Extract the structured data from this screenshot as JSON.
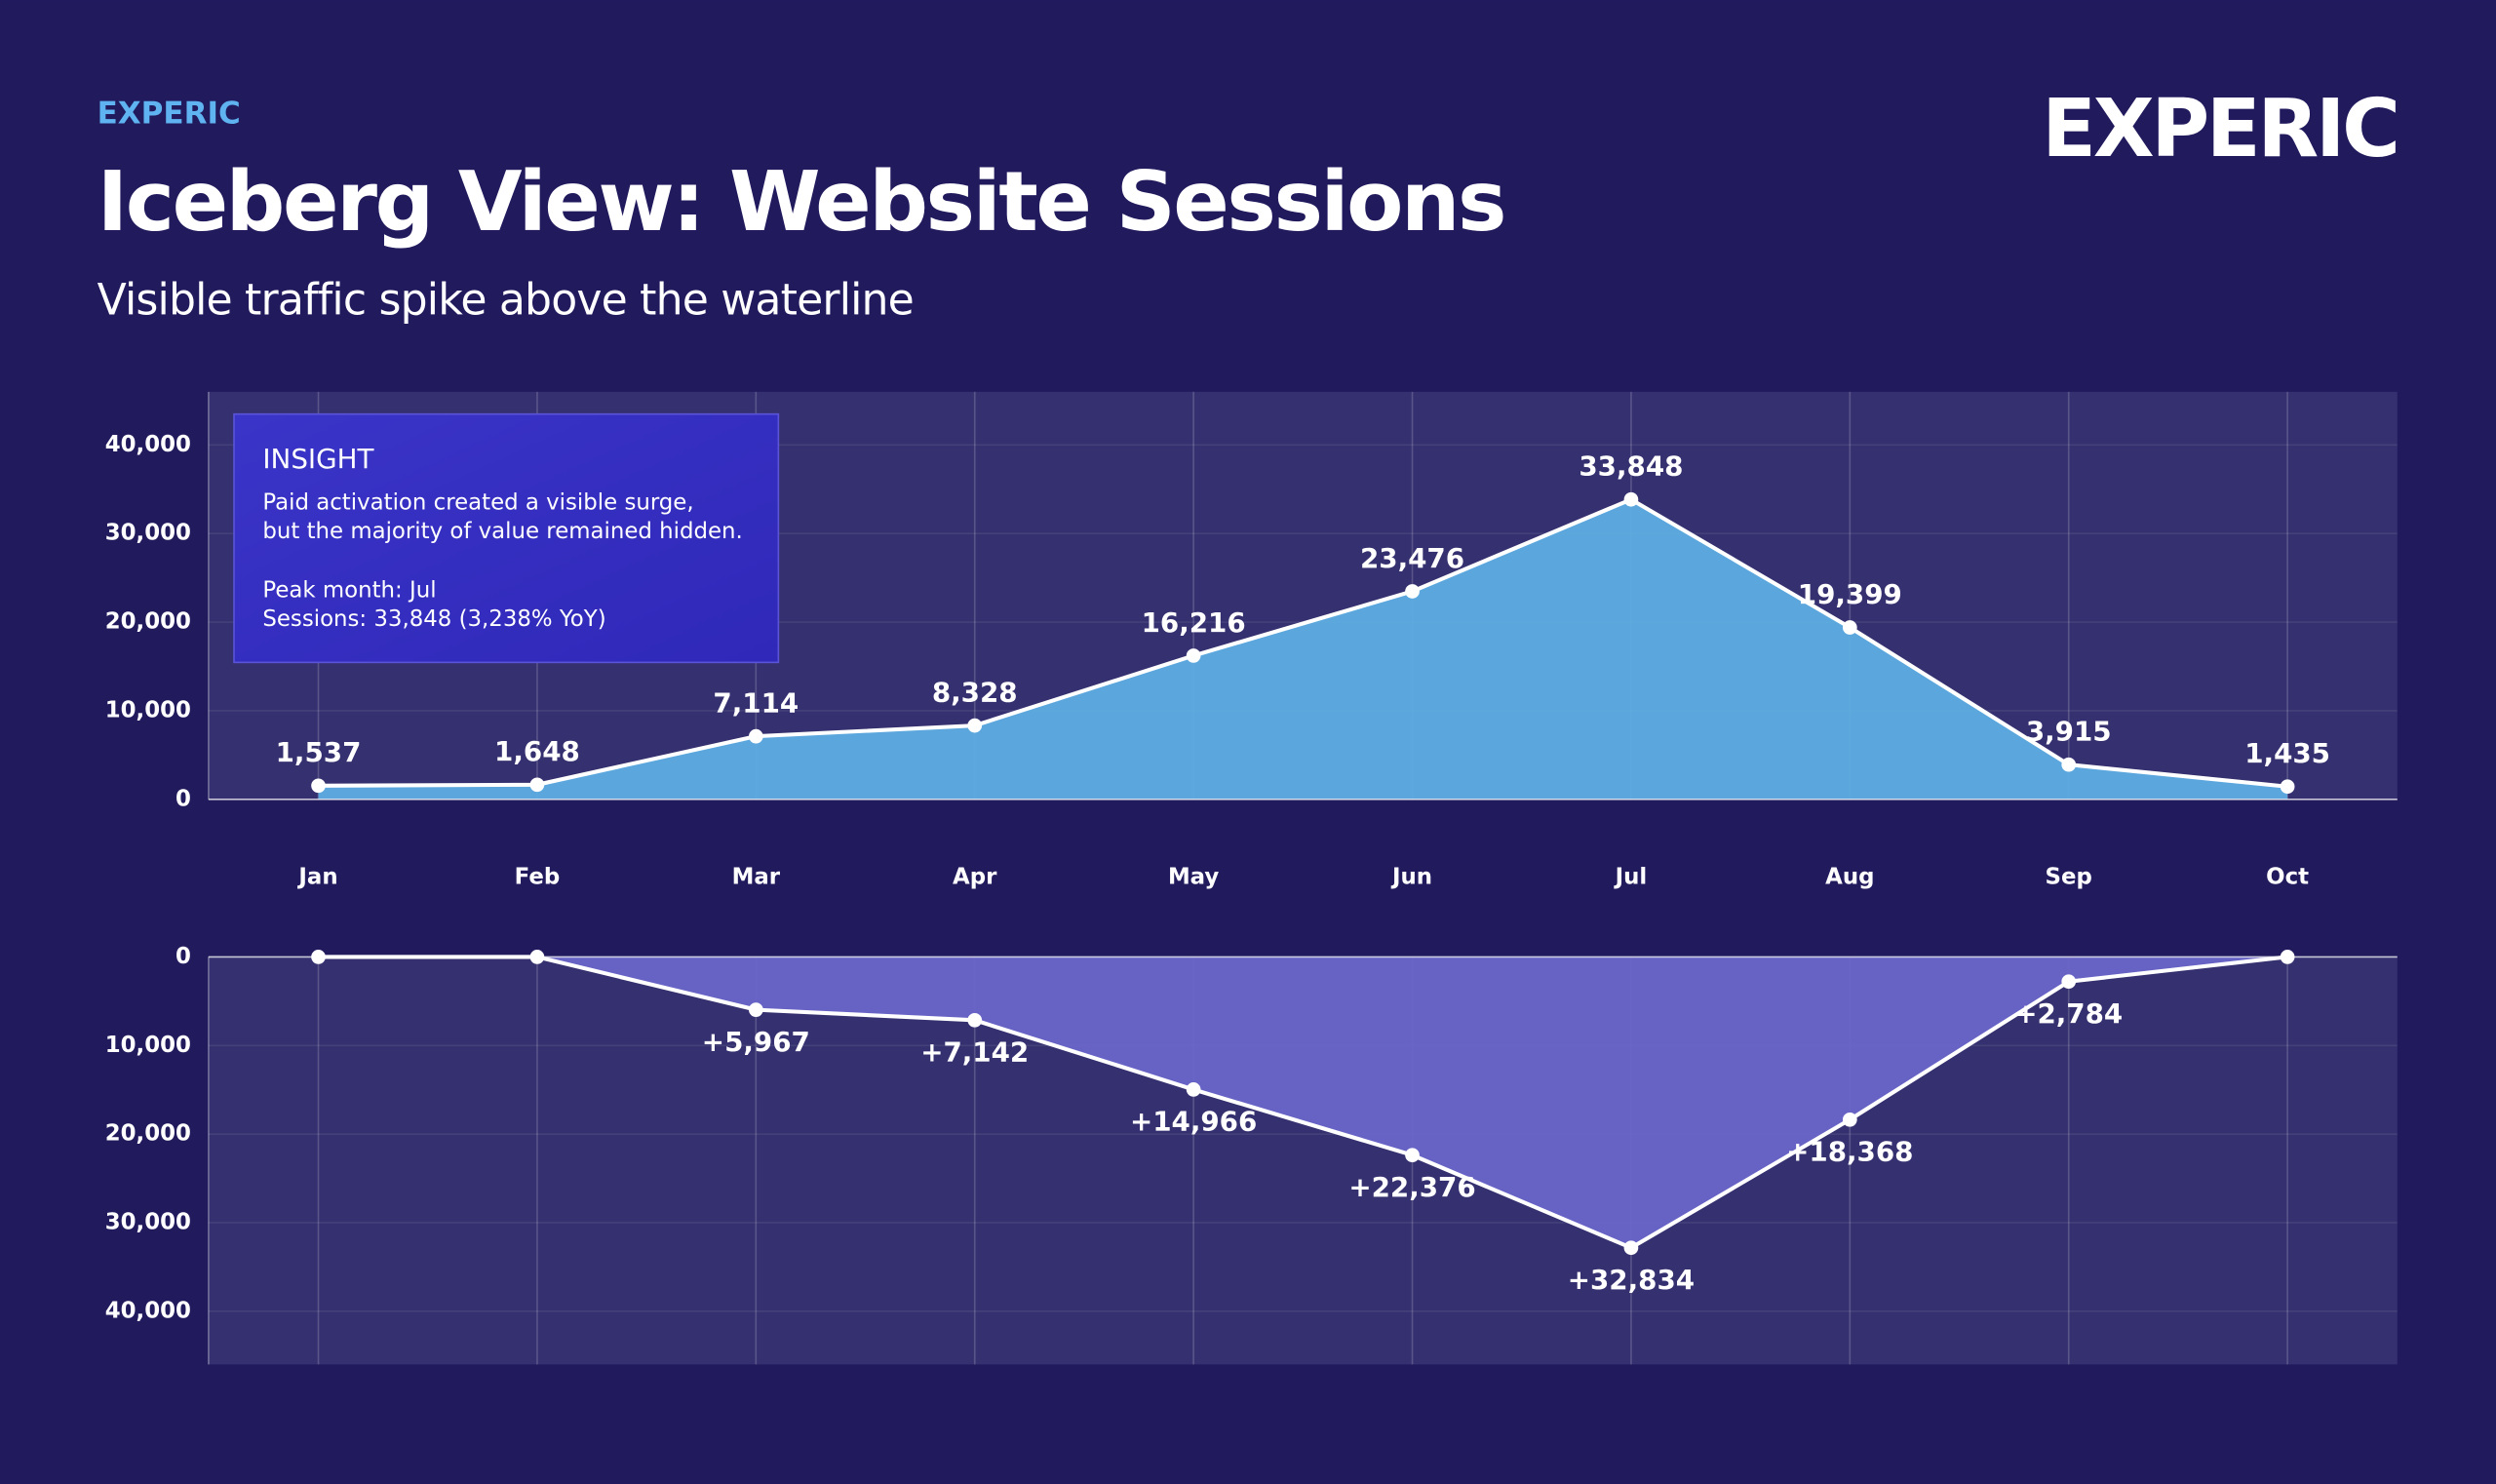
{
  "header": {
    "brand": "EXPERIC",
    "title": "Iceberg View: Website Sessions",
    "subtitle": "Visible traffic spike above the waterline",
    "logo": "EXPERIC"
  },
  "insight": {
    "heading": "INSIGHT",
    "lines": [
      "Paid activation created a visible surge,",
      "but the majority of value remained hidden.",
      "Peak month: Jul",
      "Sessions: 33,848 (3,238% YoY)"
    ]
  },
  "chart_data": [
    {
      "type": "area",
      "categories": [
        "Jan",
        "Feb",
        "Mar",
        "Apr",
        "May",
        "Jun",
        "Jul",
        "Aug",
        "Sep",
        "Oct"
      ],
      "series": [
        {
          "color": "#5eaee3",
          "values": [
            1537,
            1648,
            7114,
            8328,
            16216,
            23476,
            33848,
            19399,
            3915,
            1435
          ],
          "value_labels": [
            "1,537",
            "1,648",
            "7,114",
            "8,328",
            "16,216",
            "23,476",
            "33,848",
            "19,399",
            "3,915",
            "1,435"
          ]
        }
      ],
      "ylim": [
        0,
        46000
      ],
      "yticks": [
        0,
        {
          "value": 10000,
          "label": "10,000"
        },
        {
          "value": 20000,
          "label": "20,000"
        },
        {
          "value": 30000,
          "label": "30,000"
        },
        {
          "value": 40000,
          "label": "40,000"
        }
      ],
      "grid": true
    },
    {
      "type": "area",
      "inverted": true,
      "series": [
        {
          "color": "#6a66c9",
          "values": [
            0,
            0,
            5967,
            7142,
            14966,
            22376,
            32834,
            18368,
            2784,
            0
          ],
          "value_labels": [
            null,
            null,
            "+5,967",
            "+7,142",
            "+14,966",
            "+22,376",
            "+32,834",
            "+18,368",
            "+2,784",
            null
          ]
        }
      ],
      "ylim": [
        0,
        46000
      ],
      "yticks": [
        0,
        {
          "value": 10000,
          "label": "10,000"
        },
        {
          "value": 20000,
          "label": "20,000"
        },
        {
          "value": 30000,
          "label": "30,000"
        },
        {
          "value": 40000,
          "label": "40,000"
        }
      ],
      "grid": true
    }
  ]
}
